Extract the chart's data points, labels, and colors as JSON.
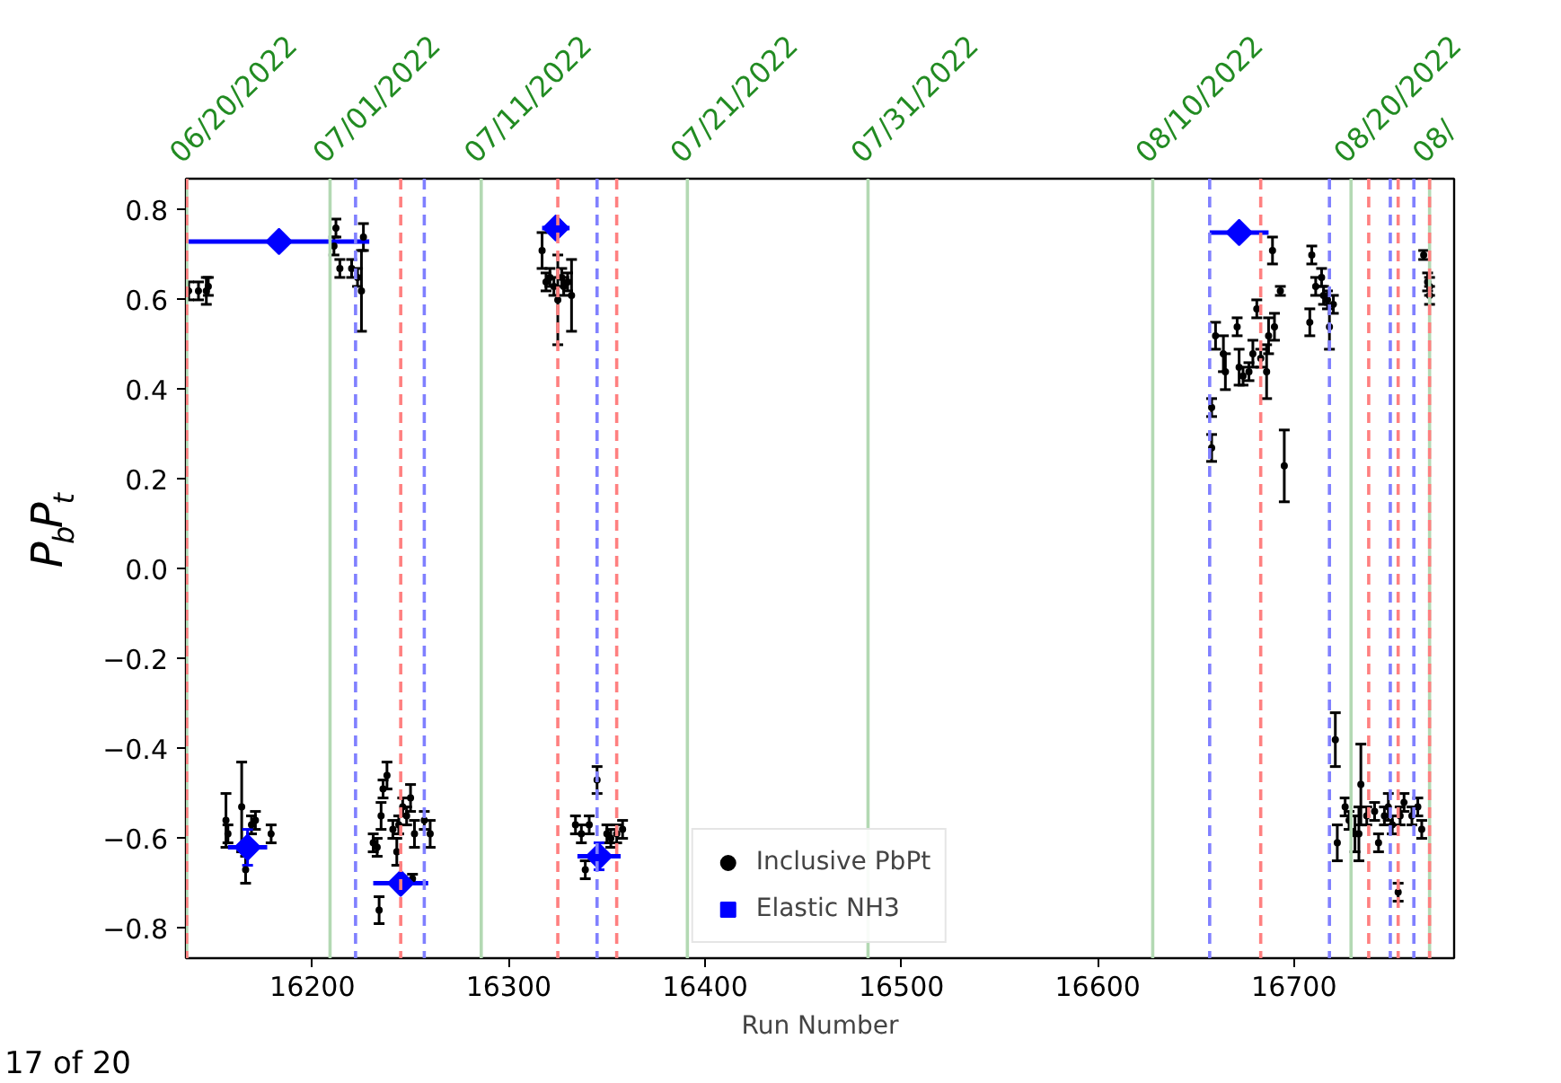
{
  "chart_data": {
    "type": "scatter",
    "xlabel": "Run Number",
    "ylabel": "P$_{b}$P$_{t}$",
    "xlim": [
      16135.6,
      16781.5
    ],
    "ylim": [
      -0.867,
      0.87
    ],
    "xticks": [
      16200,
      16300,
      16400,
      16500,
      16600,
      16700
    ],
    "yticks": [
      {
        "value": -0.8,
        "label": "−0.8"
      },
      {
        "value": -0.6,
        "label": "−0.6"
      },
      {
        "value": -0.4,
        "label": "−0.4"
      },
      {
        "value": -0.2,
        "label": "−0.2"
      },
      {
        "value": 0,
        "label": "0.0"
      },
      0.2,
      0.4,
      0.6,
      0.8
    ],
    "legend": "bottom",
    "annotations": [
      "17 of 20",
      {
        "text": "06/20/2022",
        "x": 16136,
        "y": 0.87
      },
      {
        "text": "07/01/2022",
        "x": 16209,
        "y": 0.87
      },
      {
        "text": "07/11/2022",
        "x": 16286,
        "y": 0.87
      },
      {
        "text": "07/21/2022",
        "x": 16391,
        "y": 0.87
      },
      {
        "text": "07/31/2022",
        "x": 16483,
        "y": 0.87
      },
      {
        "text": "08/10/2022",
        "x": 16628,
        "y": 0.87
      },
      {
        "text": "08/20/2022",
        "x": 16729,
        "y": 0.87
      },
      {
        "text": "08/",
        "x": 16769,
        "y": 0.87
      }
    ],
    "ref_lines": [
      {
        "axis": "x",
        "value": 16136,
        "color": "#b3d9b3"
      },
      {
        "axis": "x",
        "value": 16209,
        "color": "#b3d9b3"
      },
      {
        "axis": "x",
        "value": 16286,
        "color": "#b3d9b3"
      },
      {
        "axis": "x",
        "value": 16391,
        "color": "#b3d9b3"
      },
      {
        "axis": "x",
        "value": 16483,
        "color": "#b3d9b3"
      },
      {
        "axis": "x",
        "value": 16628,
        "color": "#b3d9b3"
      },
      {
        "axis": "x",
        "value": 16729,
        "color": "#b3d9b3"
      },
      {
        "axis": "x",
        "value": 16769,
        "color": "#b3d9b3"
      },
      {
        "axis": "x",
        "value": 16222,
        "color": "#8080ff",
        "line_style": "dashed"
      },
      {
        "axis": "x",
        "value": 16257,
        "color": "#8080ff",
        "line_style": "dashed"
      },
      {
        "axis": "x",
        "value": 16345,
        "color": "#8080ff",
        "line_style": "dashed"
      },
      {
        "axis": "x",
        "value": 16657,
        "color": "#8080ff",
        "line_style": "dashed"
      },
      {
        "axis": "x",
        "value": 16718,
        "color": "#8080ff",
        "line_style": "dashed"
      },
      {
        "axis": "x",
        "value": 16749,
        "color": "#8080ff",
        "line_style": "dashed"
      },
      {
        "axis": "x",
        "value": 16761,
        "color": "#8080ff",
        "line_style": "dashed"
      },
      {
        "axis": "x",
        "value": 16136,
        "color": "#ff8080",
        "line_style": "dashed"
      },
      {
        "axis": "x",
        "value": 16245,
        "color": "#ff8080",
        "line_style": "dashed"
      },
      {
        "axis": "x",
        "value": 16325,
        "color": "#ff8080",
        "line_style": "dashed"
      },
      {
        "axis": "x",
        "value": 16355,
        "color": "#ff8080",
        "line_style": "dashed"
      },
      {
        "axis": "x",
        "value": 16683,
        "color": "#ff8080",
        "line_style": "dashed"
      },
      {
        "axis": "x",
        "value": 16738,
        "color": "#ff8080",
        "line_style": "dashed"
      },
      {
        "axis": "x",
        "value": 16753,
        "color": "#ff8080",
        "line_style": "dashed"
      },
      {
        "axis": "x",
        "value": 16769,
        "color": "#ff8080",
        "line_style": "dashed"
      }
    ],
    "series": [
      {
        "name": "Inclusive PbPt",
        "color": "#000000",
        "marker": "circle",
        "x": [
          16137,
          16142,
          16146,
          16147,
          16156,
          16157,
          16164,
          16166,
          16169,
          16171,
          16179,
          16211,
          16212,
          16214,
          16220,
          16223,
          16225,
          16226,
          16231,
          16233,
          16234,
          16235,
          16236,
          16238,
          16241,
          16243,
          16244,
          16246,
          16248,
          16250,
          16251,
          16252,
          16257,
          16260,
          16317,
          16319,
          16321,
          16323,
          16325,
          16327,
          16328,
          16330,
          16332,
          16334,
          16337,
          16339,
          16341,
          16345,
          16350,
          16352,
          16355,
          16358,
          16658,
          16658,
          16660,
          16664,
          16665,
          16671,
          16672,
          16674,
          16677,
          16679,
          16681,
          16683,
          16686,
          16687,
          16689,
          16690,
          16693,
          16695,
          16708,
          16709,
          16711,
          16714,
          16715,
          16717,
          16718,
          16720,
          16766,
          16768,
          16769,
          16769,
          16721,
          16722,
          16726,
          16728,
          16731,
          16733,
          16734,
          16737,
          16741,
          16743,
          16746,
          16748,
          16750,
          16753,
          16754,
          16756,
          16760,
          16763,
          16765
        ],
        "values": [
          0.62,
          0.62,
          0.62,
          0.63,
          -0.56,
          -0.59,
          -0.53,
          -0.67,
          -0.57,
          -0.56,
          -0.59,
          0.72,
          0.76,
          0.67,
          0.67,
          0.65,
          0.62,
          0.74,
          -0.61,
          -0.62,
          -0.76,
          -0.55,
          -0.49,
          -0.46,
          -0.58,
          -0.63,
          -0.57,
          -0.53,
          -0.55,
          -0.51,
          -0.69,
          -0.59,
          -0.56,
          -0.59,
          0.71,
          0.64,
          0.65,
          0.63,
          0.6,
          0.65,
          0.63,
          0.64,
          0.61,
          -0.57,
          -0.59,
          -0.67,
          -0.57,
          -0.47,
          -0.59,
          -0.6,
          -0.59,
          -0.58,
          0.36,
          0.27,
          0.52,
          0.48,
          0.44,
          0.54,
          0.45,
          0.43,
          0.44,
          0.48,
          0.58,
          0.47,
          0.44,
          0.52,
          0.71,
          0.54,
          0.62,
          0.23,
          0.55,
          0.7,
          0.63,
          0.65,
          0.61,
          0.6,
          0.54,
          0.59,
          0.7,
          0.64,
          0.61,
          0.63,
          -0.38,
          -0.61,
          -0.53,
          -0.56,
          -0.59,
          -0.59,
          -0.48,
          -0.55,
          -0.54,
          -0.61,
          -0.55,
          -0.53,
          -0.57,
          -0.72,
          -0.55,
          -0.52,
          -0.55,
          -0.53,
          -0.58
        ],
        "errors": [
          0.02,
          0.02,
          0.03,
          0.02,
          0.06,
          0.02,
          0.1,
          0.03,
          0.02,
          0.02,
          0.02,
          0.02,
          0.02,
          0.02,
          0.02,
          0.02,
          0.09,
          0.03,
          0.02,
          0.02,
          0.03,
          0.03,
          0.02,
          0.03,
          0.02,
          0.03,
          0.02,
          0.02,
          0.02,
          0.03,
          0.01,
          0.03,
          0.02,
          0.03,
          0.04,
          0.02,
          0.02,
          0.02,
          0.1,
          0.02,
          0.02,
          0.02,
          0.08,
          0.02,
          0.02,
          0.02,
          0.02,
          0.03,
          0.02,
          0.02,
          0.02,
          0.02,
          0.02,
          0.03,
          0.03,
          0.04,
          0.04,
          0.02,
          0.04,
          0.02,
          0.02,
          0.03,
          0.02,
          0.02,
          0.06,
          0.04,
          0.03,
          0.03,
          0.01,
          0.08,
          0.03,
          0.02,
          0.02,
          0.02,
          0.02,
          0.02,
          0.05,
          0.02,
          0.01,
          0.02,
          0.02,
          0.02,
          0.06,
          0.04,
          0.02,
          0.02,
          0.04,
          0.06,
          0.09,
          0.02,
          0.02,
          0.02,
          0.02,
          0.03,
          0.02,
          0.02,
          0.02,
          0.02,
          0.02,
          0.02,
          0.02
        ]
      },
      {
        "name": "Elastic NH3",
        "color": "#0000ff",
        "marker": "diamond",
        "x": [
          16167,
          16183,
          16245,
          16324,
          16346,
          16672
        ],
        "values": [
          -0.62,
          0.73,
          -0.7,
          0.76,
          -0.64,
          0.75
        ],
        "errors": [
          0.04,
          0.01,
          0.01,
          0.01,
          0.03,
          0.01
        ],
        "xerrors": [
          10,
          46,
          14,
          7,
          11,
          15
        ]
      }
    ]
  }
}
